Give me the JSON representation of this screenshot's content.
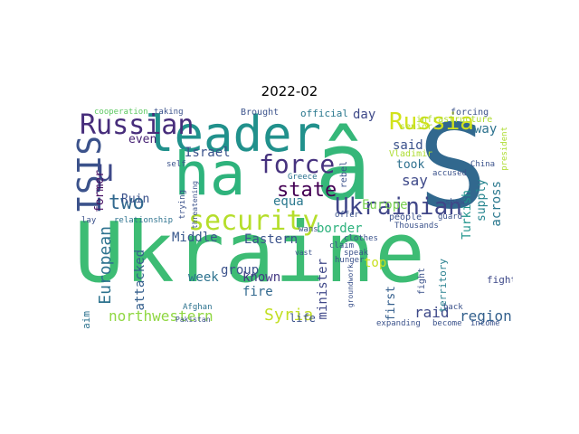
{
  "title": "2022-02",
  "words": [
    "Ukraine",
    "â",
    "S",
    "leader",
    "ha",
    "Russian",
    "Russia",
    "ISIS",
    "security",
    "Ukrainian",
    "force",
    "state",
    "two",
    "Israel",
    "u",
    "Syria",
    "northwestern",
    "European",
    "Europe",
    "region",
    "raid",
    "minister",
    "attacked",
    "across",
    "supply",
    "Turkish",
    "Middle",
    "Eastern",
    "known",
    "former",
    "even",
    "say",
    "said",
    "took",
    "top",
    "border",
    "equa",
    "fire",
    "week",
    "group",
    "way",
    "day",
    "official",
    "Brought",
    "Ruin",
    "first",
    "fighter",
    "territory",
    "fight",
    "life",
    "aim",
    "people",
    "senior",
    "infrastructure",
    "forcing",
    "Vladimir",
    "rebel",
    "Greece",
    "president",
    "China",
    "accused",
    "relationship",
    "Afghan",
    "Pakistan",
    "cooperation",
    "taking",
    "Thousands",
    "expanding",
    "become",
    "income",
    "back",
    "speak",
    "claim",
    "clothes",
    "lay",
    "self",
    "trying",
    "threatening",
    "offer",
    "vast",
    "wans",
    "hunger",
    "groundwork",
    "guard",
    "show"
  ],
  "colors": {
    "dark_purple": "#440154",
    "purple": "#472d7b",
    "blue": "#3b528b",
    "teal_blue": "#2c728e",
    "teal": "#21918c",
    "green": "#28ae80",
    "light_green": "#5ec962",
    "yellow_green": "#addc30",
    "yellow": "#fde725"
  }
}
